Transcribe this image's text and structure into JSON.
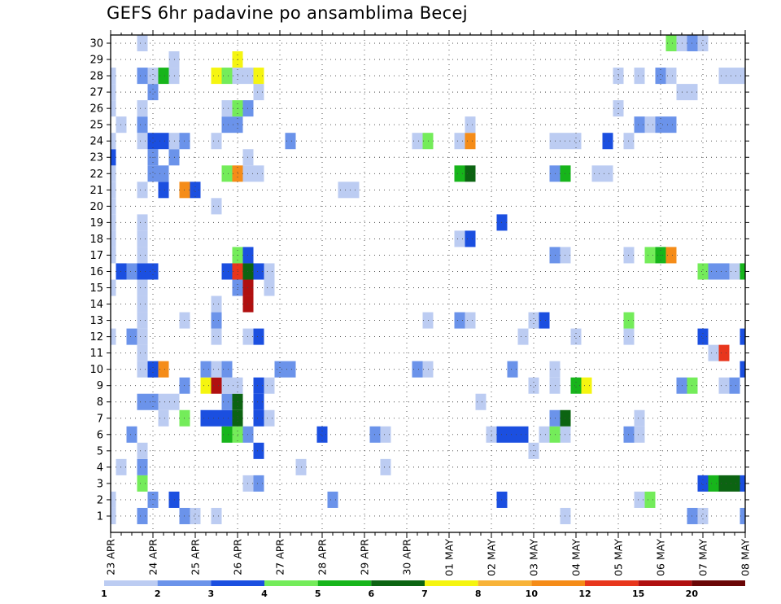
{
  "chart_data": {
    "type": "heatmap",
    "title": "GEFS 6hr padavine po ansamblima Becej",
    "y_categories": [
      "1",
      "2",
      "3",
      "4",
      "5",
      "6",
      "7",
      "8",
      "9",
      "10",
      "11",
      "12",
      "13",
      "14",
      "15",
      "16",
      "17",
      "18",
      "19",
      "20",
      "21",
      "22",
      "23",
      "24",
      "25",
      "26",
      "27",
      "28",
      "29",
      "30"
    ],
    "x_tick_labels": [
      "23 APR",
      "24 APR",
      "25 APR",
      "26 APR",
      "27 APR",
      "28 APR",
      "29 APR",
      "30 APR",
      "01 MAY",
      "02 MAY",
      "03 MAY",
      "04 MAY",
      "05 MAY",
      "06 MAY",
      "07 MAY",
      "08 MAY"
    ],
    "time_steps_per_day": 4,
    "time_steps": 61,
    "grid": true,
    "legend": {
      "placement": "bottom",
      "levels": [
        1,
        2,
        3,
        4,
        5,
        6,
        7,
        8,
        10,
        12,
        15,
        20
      ],
      "tick_labels": [
        "1",
        "2",
        "3",
        "4",
        "5",
        "6",
        "7",
        "8",
        "10",
        "12",
        "15",
        "20"
      ],
      "colors": [
        "#bcccf2",
        "#6b93ea",
        "#1b4fe0",
        "#74ec5a",
        "#17b51b",
        "#0c6412",
        "#f5f510",
        "#f8b338",
        "#f58c18",
        "#e8361c",
        "#b01010",
        "#6a0606"
      ]
    },
    "cells": [
      [
        0,
        1,
        1
      ],
      [
        3,
        1,
        2
      ],
      [
        7,
        1,
        2
      ],
      [
        8,
        1,
        1
      ],
      [
        10,
        1,
        1
      ],
      [
        43,
        1,
        1
      ],
      [
        55,
        1,
        2
      ],
      [
        56,
        1,
        1
      ],
      [
        60,
        1,
        2
      ],
      [
        0,
        2,
        1
      ],
      [
        4,
        2,
        2
      ],
      [
        6,
        2,
        3
      ],
      [
        21,
        2,
        2
      ],
      [
        37,
        2,
        3
      ],
      [
        50,
        2,
        1
      ],
      [
        51,
        2,
        4
      ],
      [
        3,
        3,
        4
      ],
      [
        13,
        3,
        1
      ],
      [
        14,
        3,
        2
      ],
      [
        56,
        3,
        3
      ],
      [
        57,
        3,
        5
      ],
      [
        58,
        3,
        6
      ],
      [
        59,
        3,
        6
      ],
      [
        60,
        3,
        3
      ],
      [
        1,
        4,
        1
      ],
      [
        3,
        4,
        2
      ],
      [
        18,
        4,
        1
      ],
      [
        26,
        4,
        1
      ],
      [
        3,
        5,
        1
      ],
      [
        14,
        5,
        3
      ],
      [
        40,
        5,
        1
      ],
      [
        2,
        6,
        2
      ],
      [
        11,
        6,
        5
      ],
      [
        12,
        6,
        4
      ],
      [
        13,
        6,
        2
      ],
      [
        20,
        6,
        3
      ],
      [
        25,
        6,
        2
      ],
      [
        26,
        6,
        1
      ],
      [
        36,
        6,
        1
      ],
      [
        37,
        6,
        3
      ],
      [
        38,
        6,
        3
      ],
      [
        39,
        6,
        3
      ],
      [
        41,
        6,
        1
      ],
      [
        42,
        6,
        4
      ],
      [
        43,
        6,
        1
      ],
      [
        49,
        6,
        2
      ],
      [
        50,
        6,
        1
      ],
      [
        5,
        7,
        1
      ],
      [
        7,
        7,
        4
      ],
      [
        9,
        7,
        3
      ],
      [
        10,
        7,
        3
      ],
      [
        11,
        7,
        3
      ],
      [
        12,
        7,
        6
      ],
      [
        14,
        7,
        3
      ],
      [
        15,
        7,
        1
      ],
      [
        42,
        7,
        2
      ],
      [
        43,
        7,
        6
      ],
      [
        50,
        7,
        1
      ],
      [
        3,
        8,
        2
      ],
      [
        4,
        8,
        2
      ],
      [
        5,
        8,
        1
      ],
      [
        6,
        8,
        1
      ],
      [
        11,
        8,
        2
      ],
      [
        12,
        8,
        6
      ],
      [
        14,
        8,
        3
      ],
      [
        35,
        8,
        1
      ],
      [
        7,
        9,
        2
      ],
      [
        9,
        9,
        7
      ],
      [
        10,
        9,
        11
      ],
      [
        11,
        9,
        1
      ],
      [
        12,
        9,
        1
      ],
      [
        14,
        9,
        3
      ],
      [
        15,
        9,
        1
      ],
      [
        40,
        9,
        1
      ],
      [
        42,
        9,
        1
      ],
      [
        44,
        9,
        5
      ],
      [
        45,
        9,
        7
      ],
      [
        54,
        9,
        2
      ],
      [
        55,
        9,
        4
      ],
      [
        58,
        9,
        1
      ],
      [
        59,
        9,
        2
      ],
      [
        3,
        10,
        1
      ],
      [
        4,
        10,
        3
      ],
      [
        5,
        10,
        9
      ],
      [
        9,
        10,
        2
      ],
      [
        10,
        10,
        1
      ],
      [
        11,
        10,
        2
      ],
      [
        16,
        10,
        2
      ],
      [
        17,
        10,
        2
      ],
      [
        29,
        10,
        2
      ],
      [
        30,
        10,
        1
      ],
      [
        38,
        10,
        2
      ],
      [
        42,
        10,
        1
      ],
      [
        60,
        10,
        3
      ],
      [
        3,
        11,
        1
      ],
      [
        57,
        11,
        1
      ],
      [
        58,
        11,
        10
      ],
      [
        0,
        12,
        1
      ],
      [
        2,
        12,
        2
      ],
      [
        3,
        12,
        1
      ],
      [
        10,
        12,
        1
      ],
      [
        13,
        12,
        1
      ],
      [
        14,
        12,
        3
      ],
      [
        39,
        12,
        1
      ],
      [
        44,
        12,
        1
      ],
      [
        49,
        12,
        1
      ],
      [
        56,
        12,
        3
      ],
      [
        60,
        12,
        3
      ],
      [
        3,
        13,
        1
      ],
      [
        7,
        13,
        1
      ],
      [
        10,
        13,
        2
      ],
      [
        30,
        13,
        1
      ],
      [
        33,
        13,
        2
      ],
      [
        34,
        13,
        1
      ],
      [
        40,
        13,
        1
      ],
      [
        41,
        13,
        3
      ],
      [
        49,
        13,
        4
      ],
      [
        3,
        14,
        1
      ],
      [
        10,
        14,
        1
      ],
      [
        13,
        14,
        11
      ],
      [
        0,
        15,
        1
      ],
      [
        3,
        15,
        1
      ],
      [
        12,
        15,
        2
      ],
      [
        13,
        15,
        11
      ],
      [
        15,
        15,
        1
      ],
      [
        1,
        16,
        3
      ],
      [
        2,
        16,
        2
      ],
      [
        3,
        16,
        3
      ],
      [
        4,
        16,
        3
      ],
      [
        11,
        16,
        3
      ],
      [
        12,
        16,
        10
      ],
      [
        13,
        16,
        6
      ],
      [
        14,
        16,
        3
      ],
      [
        15,
        16,
        1
      ],
      [
        56,
        16,
        4
      ],
      [
        57,
        16,
        2
      ],
      [
        58,
        16,
        2
      ],
      [
        59,
        16,
        1
      ],
      [
        60,
        16,
        5
      ],
      [
        0,
        17,
        1
      ],
      [
        3,
        17,
        1
      ],
      [
        12,
        17,
        4
      ],
      [
        13,
        17,
        3
      ],
      [
        42,
        17,
        2
      ],
      [
        43,
        17,
        1
      ],
      [
        49,
        17,
        1
      ],
      [
        51,
        17,
        4
      ],
      [
        52,
        17,
        5
      ],
      [
        53,
        17,
        9
      ],
      [
        0,
        18,
        1
      ],
      [
        3,
        18,
        1
      ],
      [
        33,
        18,
        1
      ],
      [
        34,
        18,
        3
      ],
      [
        0,
        19,
        1
      ],
      [
        3,
        19,
        1
      ],
      [
        37,
        19,
        3
      ],
      [
        0,
        20,
        1
      ],
      [
        10,
        20,
        1
      ],
      [
        0,
        21,
        1
      ],
      [
        3,
        21,
        1
      ],
      [
        5,
        21,
        3
      ],
      [
        7,
        21,
        9
      ],
      [
        8,
        21,
        3
      ],
      [
        22,
        21,
        1
      ],
      [
        23,
        21,
        1
      ],
      [
        0,
        22,
        1
      ],
      [
        4,
        22,
        2
      ],
      [
        5,
        22,
        2
      ],
      [
        11,
        22,
        4
      ],
      [
        12,
        22,
        9
      ],
      [
        13,
        22,
        1
      ],
      [
        14,
        22,
        1
      ],
      [
        33,
        22,
        5
      ],
      [
        34,
        22,
        6
      ],
      [
        42,
        22,
        2
      ],
      [
        43,
        22,
        5
      ],
      [
        46,
        22,
        1
      ],
      [
        47,
        22,
        1
      ],
      [
        0,
        23,
        3
      ],
      [
        4,
        23,
        2
      ],
      [
        6,
        23,
        2
      ],
      [
        13,
        23,
        1
      ],
      [
        0,
        24,
        1
      ],
      [
        3,
        24,
        1
      ],
      [
        4,
        24,
        3
      ],
      [
        5,
        24,
        3
      ],
      [
        6,
        24,
        1
      ],
      [
        7,
        24,
        2
      ],
      [
        10,
        24,
        1
      ],
      [
        17,
        24,
        2
      ],
      [
        29,
        24,
        1
      ],
      [
        30,
        24,
        4
      ],
      [
        33,
        24,
        1
      ],
      [
        34,
        24,
        9
      ],
      [
        42,
        24,
        1
      ],
      [
        43,
        24,
        1
      ],
      [
        44,
        24,
        1
      ],
      [
        47,
        24,
        3
      ],
      [
        49,
        24,
        1
      ],
      [
        1,
        25,
        1
      ],
      [
        3,
        25,
        2
      ],
      [
        11,
        25,
        2
      ],
      [
        12,
        25,
        2
      ],
      [
        34,
        25,
        1
      ],
      [
        50,
        25,
        2
      ],
      [
        51,
        25,
        1
      ],
      [
        52,
        25,
        2
      ],
      [
        53,
        25,
        2
      ],
      [
        0,
        26,
        1
      ],
      [
        3,
        26,
        1
      ],
      [
        11,
        26,
        1
      ],
      [
        12,
        26,
        4
      ],
      [
        13,
        26,
        2
      ],
      [
        48,
        26,
        1
      ],
      [
        0,
        27,
        1
      ],
      [
        4,
        27,
        2
      ],
      [
        14,
        27,
        1
      ],
      [
        54,
        27,
        1
      ],
      [
        55,
        27,
        1
      ],
      [
        0,
        28,
        1
      ],
      [
        3,
        28,
        2
      ],
      [
        4,
        28,
        1
      ],
      [
        5,
        28,
        5
      ],
      [
        6,
        28,
        1
      ],
      [
        10,
        28,
        7
      ],
      [
        11,
        28,
        4
      ],
      [
        12,
        28,
        1
      ],
      [
        13,
        28,
        1
      ],
      [
        14,
        28,
        7
      ],
      [
        48,
        28,
        1
      ],
      [
        50,
        28,
        1
      ],
      [
        52,
        28,
        2
      ],
      [
        53,
        28,
        1
      ],
      [
        58,
        28,
        1
      ],
      [
        59,
        28,
        1
      ],
      [
        60,
        28,
        1
      ],
      [
        6,
        29,
        1
      ],
      [
        12,
        29,
        7
      ],
      [
        3,
        30,
        1
      ],
      [
        53,
        30,
        4
      ],
      [
        54,
        30,
        1
      ],
      [
        55,
        30,
        2
      ],
      [
        56,
        30,
        1
      ]
    ]
  }
}
